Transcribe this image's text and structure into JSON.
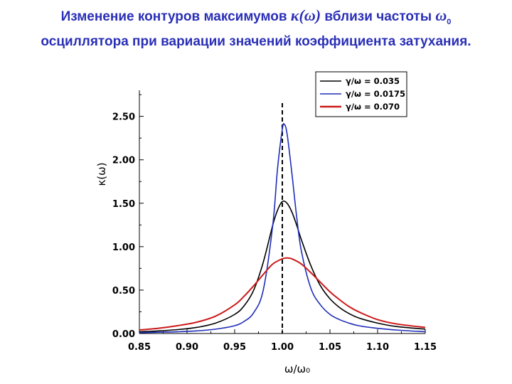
{
  "title": {
    "line1_prefix": "Изменение контуров максимумов",
    "line1_symbol": "κ(ω)",
    "line1_mid": "вблизи частоты",
    "line1_omega": "ω",
    "line1_sub": "0",
    "line2": "осциллятора при вариации значений коэффициента затухания."
  },
  "chart_data": {
    "type": "line",
    "title": "",
    "xlabel": "ω/ω₀",
    "ylabel": "κ(ω)",
    "xlim": [
      0.85,
      1.15
    ],
    "ylim": [
      0,
      2.8
    ],
    "xticks": [
      "0.85",
      "0.90",
      "0.95",
      "1.00",
      "1.05",
      "1.10",
      "1.15"
    ],
    "yticks": [
      "0.00",
      "0.50",
      "1.00",
      "1.50",
      "2.00",
      "2.50"
    ],
    "vline_x": 1.0,
    "legend_position": "top-right",
    "grid": false,
    "series": [
      {
        "name": "γ/ω = 0.035",
        "color": "#000000",
        "x": [
          0.85,
          0.87,
          0.89,
          0.91,
          0.93,
          0.95,
          0.96,
          0.97,
          0.98,
          0.99,
          0.995,
          1.0,
          1.005,
          1.01,
          1.015,
          1.02,
          1.03,
          1.04,
          1.05,
          1.06,
          1.07,
          1.08,
          1.1,
          1.12,
          1.15
        ],
        "y": [
          0.02,
          0.03,
          0.045,
          0.07,
          0.12,
          0.22,
          0.32,
          0.5,
          0.82,
          1.25,
          1.42,
          1.52,
          1.5,
          1.4,
          1.25,
          1.08,
          0.78,
          0.55,
          0.4,
          0.3,
          0.23,
          0.18,
          0.12,
          0.08,
          0.05
        ]
      },
      {
        "name": "γ/ω = 0.0175",
        "color": "#1f2db8",
        "x": [
          0.85,
          0.87,
          0.89,
          0.91,
          0.93,
          0.95,
          0.96,
          0.97,
          0.98,
          0.99,
          0.995,
          1.0,
          1.002,
          1.005,
          1.01,
          1.015,
          1.02,
          1.03,
          1.04,
          1.05,
          1.06,
          1.07,
          1.08,
          1.1,
          1.12,
          1.15
        ],
        "y": [
          0.01,
          0.015,
          0.02,
          0.03,
          0.05,
          0.09,
          0.14,
          0.24,
          0.5,
          1.25,
          1.9,
          2.35,
          2.41,
          2.3,
          1.85,
          1.35,
          0.95,
          0.52,
          0.33,
          0.22,
          0.16,
          0.12,
          0.09,
          0.06,
          0.04,
          0.02
        ]
      },
      {
        "name": "γ/ω = 0.070",
        "color": "#cc1a1a",
        "x": [
          0.85,
          0.87,
          0.89,
          0.91,
          0.93,
          0.95,
          0.96,
          0.97,
          0.98,
          0.99,
          1.0,
          1.005,
          1.01,
          1.02,
          1.03,
          1.04,
          1.05,
          1.06,
          1.07,
          1.08,
          1.1,
          1.12,
          1.15
        ],
        "y": [
          0.04,
          0.06,
          0.09,
          0.13,
          0.2,
          0.33,
          0.43,
          0.55,
          0.68,
          0.8,
          0.86,
          0.87,
          0.86,
          0.8,
          0.7,
          0.59,
          0.48,
          0.39,
          0.31,
          0.25,
          0.16,
          0.11,
          0.07
        ]
      }
    ]
  }
}
